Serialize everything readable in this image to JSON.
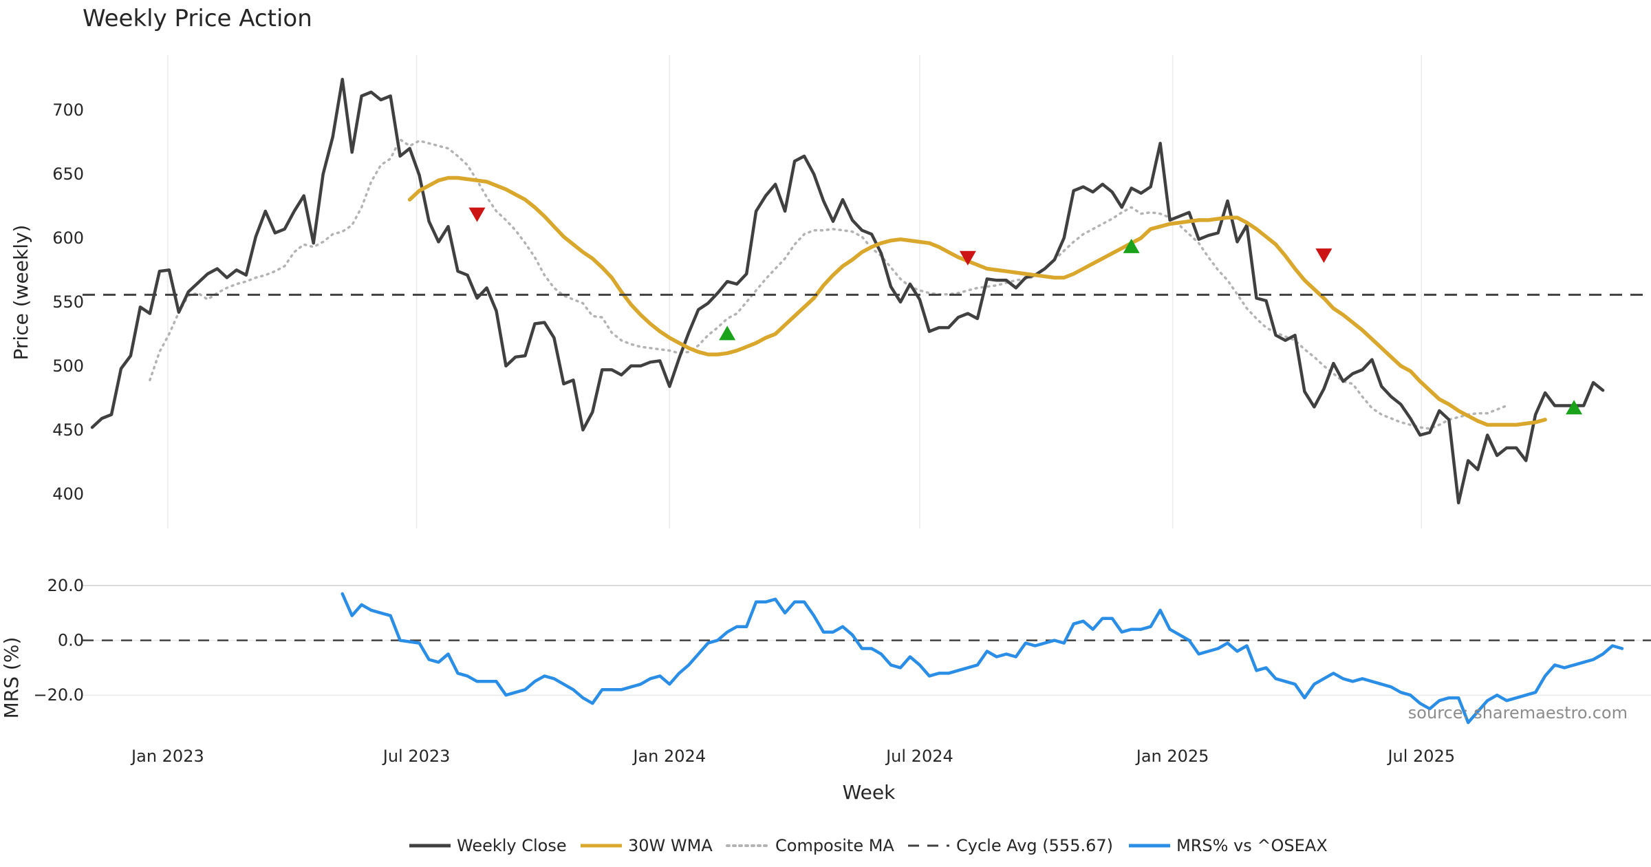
{
  "chart_data": [
    {
      "type": "line",
      "title": "Weekly Price Action",
      "xlabel": "",
      "ylabel": "Price (weekly)",
      "ylim": [
        373,
        743
      ],
      "yticks": [
        400,
        450,
        500,
        550,
        600,
        650,
        700
      ],
      "x_start": "2022-10-31",
      "x_end": "2025-12-15",
      "x_ticks": [
        {
          "label": "Jan 2023",
          "date": "2023-01-01"
        },
        {
          "label": "Jul 2023",
          "date": "2023-07-01"
        },
        {
          "label": "Jan 2024",
          "date": "2024-01-01"
        },
        {
          "label": "Jul 2024",
          "date": "2024-07-01"
        },
        {
          "label": "Jan 2025",
          "date": "2025-01-01"
        },
        {
          "label": "Jul 2025",
          "date": "2025-07-01"
        }
      ],
      "first_week": "2022-11-07",
      "series": [
        {
          "name": "Weekly Close",
          "color": "#404040",
          "values": [
            452,
            459,
            462,
            498,
            508,
            546,
            541,
            574,
            575,
            542,
            558,
            565,
            572,
            576,
            569,
            575,
            571,
            601,
            621,
            604,
            607,
            621,
            633,
            596,
            650,
            679,
            724,
            667,
            711,
            714,
            708,
            711,
            664,
            670,
            649,
            613,
            597,
            609,
            574,
            571,
            553,
            561,
            543,
            500,
            507,
            508,
            533,
            534,
            522,
            486,
            489,
            450,
            464,
            497,
            497,
            493,
            500,
            500,
            503,
            504,
            484,
            506,
            526,
            544,
            549,
            557,
            566,
            564,
            572,
            621,
            633,
            642,
            621,
            660,
            664,
            650,
            629,
            613,
            630,
            614,
            606,
            603,
            588,
            562,
            550,
            564,
            552,
            527,
            530,
            530,
            538,
            541,
            537,
            568,
            567,
            567,
            561,
            569,
            571,
            576,
            583,
            600,
            637,
            640,
            636,
            642,
            636,
            624,
            639,
            635,
            640,
            674,
            614,
            617,
            620,
            599,
            602,
            604,
            629,
            597,
            610,
            553,
            551,
            524,
            520,
            524,
            480,
            468,
            482,
            502,
            488,
            494,
            497,
            505,
            484,
            476,
            470,
            459,
            446,
            448,
            465,
            458,
            393,
            426,
            419,
            446,
            430,
            436,
            436,
            426,
            462,
            479,
            469,
            469,
            469,
            469,
            487,
            481
          ]
        },
        {
          "name": "30W WMA",
          "color": "#d9a72b",
          "start_week": 33,
          "values": [
            630,
            637,
            641,
            645,
            647,
            647,
            646,
            645,
            644,
            641,
            638,
            634,
            630,
            624,
            617,
            609,
            601,
            595,
            589,
            584,
            577,
            569,
            558,
            548,
            540,
            533,
            527,
            522,
            518,
            514,
            511,
            509,
            509,
            510,
            512,
            515,
            518,
            522,
            525,
            532,
            539,
            546,
            553,
            563,
            571,
            578,
            583,
            589,
            593,
            596,
            598,
            599,
            598,
            597,
            596,
            593,
            589,
            585,
            582,
            579,
            576,
            575,
            574,
            573,
            572,
            571,
            570,
            569,
            569,
            572,
            576,
            580,
            584,
            588,
            592,
            596,
            600,
            607,
            609,
            611,
            612,
            613,
            614,
            614,
            615,
            616,
            616,
            612,
            607,
            601,
            595,
            586,
            576,
            567,
            560,
            553,
            545,
            540,
            534,
            528,
            521,
            514,
            507,
            500,
            496,
            488,
            481,
            474,
            470,
            465,
            461,
            457,
            454,
            454,
            454,
            454,
            455,
            456,
            458
          ]
        },
        {
          "name": "Composite MA",
          "color": "#b3b3b3",
          "start_week": 6,
          "values": [
            489,
            511,
            525,
            542,
            555,
            557,
            552,
            557,
            561,
            564,
            566,
            569,
            571,
            574,
            578,
            589,
            595,
            593,
            597,
            603,
            605,
            610,
            624,
            644,
            657,
            662,
            677,
            672,
            676,
            674,
            672,
            670,
            664,
            657,
            645,
            632,
            621,
            614,
            606,
            596,
            585,
            571,
            561,
            555,
            552,
            549,
            539,
            538,
            526,
            520,
            517,
            515,
            514,
            513,
            512,
            510,
            511,
            516,
            524,
            530,
            537,
            541,
            550,
            559,
            568,
            576,
            584,
            595,
            603,
            606,
            606,
            607,
            606,
            605,
            601,
            592,
            586,
            577,
            568,
            562,
            559,
            557,
            556,
            556,
            557,
            559,
            561,
            562,
            563,
            565,
            567,
            568,
            570,
            576,
            583,
            590,
            597,
            603,
            607,
            611,
            615,
            620,
            624,
            619,
            620,
            619,
            616,
            610,
            603,
            596,
            585,
            575,
            567,
            556,
            545,
            537,
            530,
            526,
            523,
            520,
            513,
            507,
            500,
            494,
            488,
            486,
            476,
            467,
            462,
            459,
            456,
            454,
            452,
            451,
            454,
            458,
            460,
            462,
            463,
            463,
            466,
            469
          ]
        },
        {
          "name": "Cycle Avg (555.67)",
          "color": "#404040",
          "value": 555.67
        }
      ],
      "annotations": [
        {
          "type": "sell",
          "week": 40,
          "value": 619
        },
        {
          "type": "buy",
          "week": 66,
          "value": 525
        },
        {
          "type": "sell",
          "week": 91,
          "value": 585
        },
        {
          "type": "buy",
          "week": 108,
          "value": 593
        },
        {
          "type": "sell",
          "week": 128,
          "value": 587
        },
        {
          "type": "buy",
          "week": 154,
          "value": 467
        }
      ]
    },
    {
      "type": "line",
      "title": "",
      "xlabel": "Week",
      "ylabel": "MRS (%)",
      "ylim": [
        -33,
        24
      ],
      "yticks": [
        20.0,
        0.0,
        -20.0
      ],
      "ytick_labels": [
        "20.0",
        "0.0",
        "−20.0"
      ],
      "series": [
        {
          "name": "MRS% vs ^OSEAX",
          "color": "#2b8ee6",
          "start_week": 26,
          "values": [
            17,
            9,
            13,
            11,
            10,
            9,
            0,
            -0.5,
            -1,
            -7,
            -8,
            -5,
            -12,
            -13,
            -15,
            -15,
            -15,
            -20,
            -19,
            -18,
            -15,
            -13,
            -14,
            -16,
            -18,
            -21,
            -23,
            -18,
            -18,
            -18,
            -17,
            -16,
            -14,
            -13,
            -16,
            -12,
            -9,
            -5,
            -1,
            0,
            3,
            5,
            5,
            14,
            14,
            15,
            10,
            14,
            14,
            9,
            3,
            3,
            5,
            2,
            -3,
            -3,
            -5,
            -9,
            -10,
            -6,
            -9,
            -13,
            -12,
            -12,
            -11,
            -10,
            -9,
            -4,
            -6,
            -5,
            -6,
            -1,
            -2,
            -1,
            0,
            -1,
            6,
            7,
            4,
            8,
            8,
            3,
            4,
            4,
            5,
            11,
            4,
            2,
            0,
            -5,
            -4,
            -3,
            -1,
            -4,
            -2,
            -11,
            -10,
            -14,
            -15,
            -16,
            -21,
            -16,
            -14,
            -12,
            -14,
            -15,
            -14,
            -15,
            -16,
            -17,
            -19,
            -20,
            -23,
            -25,
            -22,
            -21,
            -21,
            -30,
            -26,
            -22,
            -20,
            -22,
            -21,
            -20,
            -19,
            -13,
            -9,
            -10,
            -9,
            -8,
            -7,
            -5,
            -2,
            -3
          ]
        }
      ],
      "reference_line": 0
    }
  ],
  "legend": [
    {
      "label": "Weekly Close",
      "style": "solid",
      "color": "#404040"
    },
    {
      "label": "30W WMA",
      "style": "solid",
      "color": "#d9a72b"
    },
    {
      "label": "Composite MA",
      "style": "dotted",
      "color": "#b3b3b3"
    },
    {
      "label": "Cycle Avg (555.67)",
      "style": "dashed",
      "color": "#404040"
    },
    {
      "label": "MRS% vs ^OSEAX",
      "style": "solid",
      "color": "#2b8ee6"
    }
  ],
  "source_note": "source: sharemaestro.com"
}
